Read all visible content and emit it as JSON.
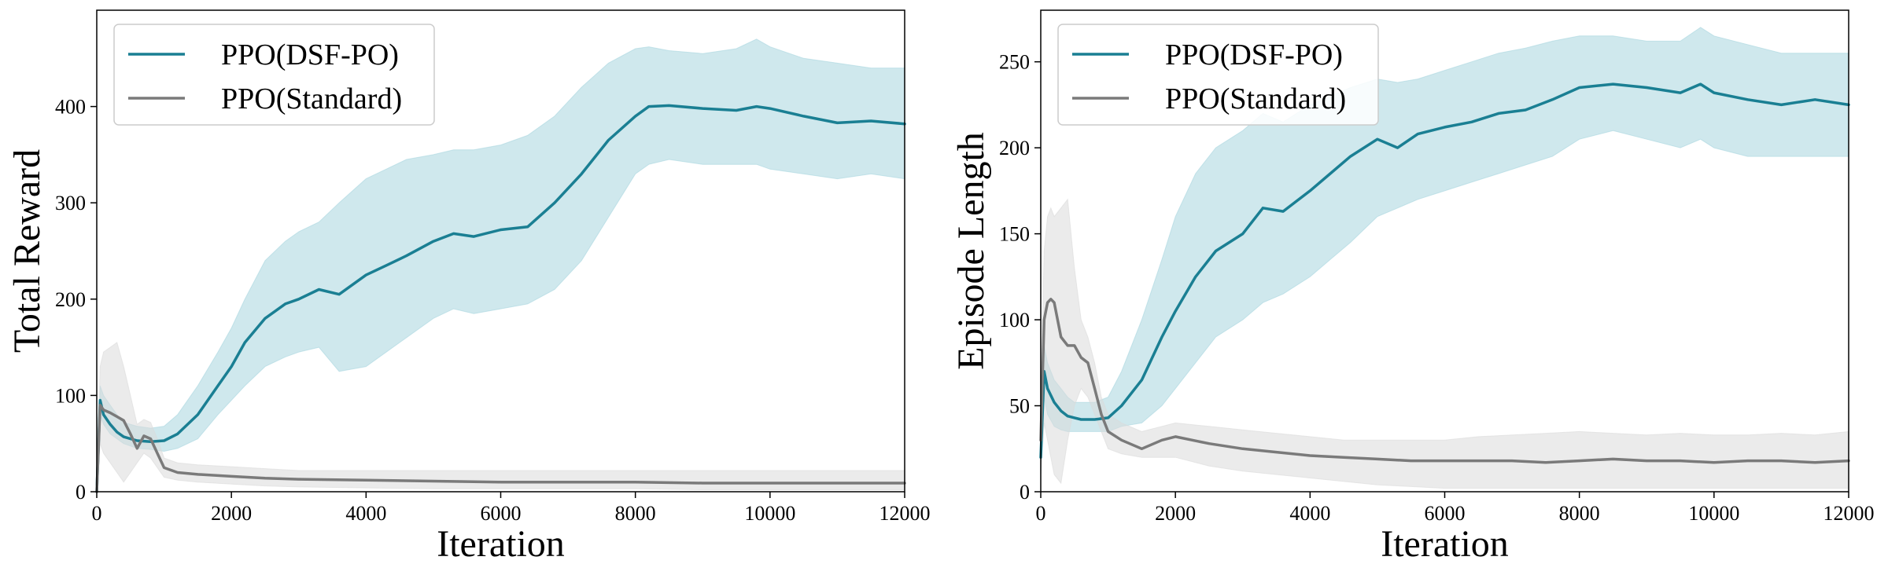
{
  "chart_data": [
    {
      "type": "line",
      "xlabel": "Iteration",
      "ylabel": "Total Reward",
      "xlim": [
        0,
        12000
      ],
      "ylim": [
        0,
        500
      ],
      "xticks": [
        0,
        2000,
        4000,
        6000,
        8000,
        10000,
        12000
      ],
      "yticks": [
        0,
        100,
        200,
        300,
        400
      ],
      "grid": false,
      "legend": "top-left",
      "series": [
        {
          "name": "PPO(DSF-PO)",
          "color": "#1a7f93",
          "band_color": "#a8d5df",
          "x": [
            0,
            50,
            100,
            200,
            300,
            400,
            600,
            800,
            1000,
            1200,
            1500,
            1800,
            2000,
            2200,
            2500,
            2800,
            3000,
            3300,
            3600,
            4000,
            4300,
            4600,
            5000,
            5300,
            5600,
            6000,
            6400,
            6800,
            7200,
            7600,
            8000,
            8200,
            8500,
            9000,
            9500,
            9800,
            10000,
            10500,
            11000,
            11500,
            12000
          ],
          "y": [
            0,
            95,
            80,
            70,
            62,
            57,
            53,
            52,
            53,
            60,
            80,
            110,
            130,
            155,
            180,
            195,
            200,
            210,
            205,
            225,
            235,
            245,
            260,
            268,
            265,
            272,
            275,
            300,
            330,
            365,
            390,
            400,
            401,
            398,
            396,
            400,
            398,
            390,
            383,
            385,
            382
          ],
          "y_low": [
            0,
            80,
            70,
            60,
            55,
            50,
            45,
            44,
            42,
            45,
            55,
            80,
            95,
            110,
            130,
            140,
            145,
            150,
            125,
            130,
            145,
            160,
            180,
            190,
            185,
            190,
            195,
            210,
            240,
            285,
            330,
            340,
            345,
            340,
            340,
            340,
            335,
            330,
            325,
            330,
            325
          ],
          "y_high": [
            0,
            110,
            100,
            90,
            80,
            72,
            68,
            66,
            68,
            80,
            110,
            145,
            170,
            200,
            240,
            260,
            270,
            280,
            300,
            325,
            335,
            345,
            350,
            355,
            355,
            360,
            370,
            390,
            420,
            445,
            460,
            462,
            458,
            455,
            460,
            470,
            462,
            450,
            445,
            440,
            440
          ]
        },
        {
          "name": "PPO(Standard)",
          "color": "#7a7a7a",
          "band_color": "#dadada",
          "x": [
            0,
            50,
            100,
            200,
            300,
            400,
            500,
            600,
            700,
            800,
            900,
            1000,
            1200,
            1500,
            2000,
            2500,
            3000,
            4000,
            5000,
            6000,
            7000,
            8000,
            9000,
            10000,
            11000,
            12000
          ],
          "y": [
            0,
            90,
            85,
            82,
            78,
            74,
            60,
            45,
            58,
            55,
            40,
            25,
            20,
            18,
            16,
            14,
            13,
            12,
            11,
            10,
            10,
            10,
            9,
            9,
            9,
            9
          ],
          "y_low": [
            0,
            50,
            40,
            30,
            20,
            10,
            20,
            30,
            40,
            35,
            25,
            15,
            12,
            10,
            8,
            6,
            5,
            4,
            3,
            3,
            3,
            3,
            2,
            2,
            2,
            2
          ],
          "y_high": [
            0,
            130,
            145,
            150,
            155,
            130,
            100,
            70,
            75,
            72,
            55,
            35,
            30,
            28,
            26,
            24,
            22,
            22,
            22,
            22,
            22,
            22,
            22,
            22,
            22,
            22
          ]
        }
      ]
    },
    {
      "type": "line",
      "xlabel": "Iteration",
      "ylabel": "Episode Length",
      "xlim": [
        0,
        12000
      ],
      "ylim": [
        0,
        280
      ],
      "xticks": [
        0,
        2000,
        4000,
        6000,
        8000,
        10000,
        12000
      ],
      "yticks": [
        0,
        50,
        100,
        150,
        200,
        250
      ],
      "grid": false,
      "legend": "top-left",
      "series": [
        {
          "name": "PPO(DSF-PO)",
          "color": "#1a7f93",
          "band_color": "#a8d5df",
          "x": [
            0,
            50,
            100,
            200,
            300,
            400,
            500,
            600,
            800,
            1000,
            1200,
            1500,
            1800,
            2000,
            2300,
            2600,
            3000,
            3300,
            3600,
            4000,
            4300,
            4600,
            5000,
            5300,
            5600,
            6000,
            6400,
            6800,
            7200,
            7600,
            8000,
            8500,
            9000,
            9500,
            9800,
            10000,
            10500,
            11000,
            11500,
            12000
          ],
          "y": [
            20,
            70,
            60,
            52,
            47,
            44,
            43,
            42,
            42,
            43,
            50,
            65,
            90,
            105,
            125,
            140,
            150,
            165,
            163,
            175,
            185,
            195,
            205,
            200,
            208,
            212,
            215,
            220,
            222,
            228,
            235,
            237,
            235,
            232,
            237,
            232,
            228,
            225,
            228,
            225
          ],
          "y_low": [
            10,
            55,
            45,
            38,
            36,
            35,
            35,
            35,
            35,
            35,
            38,
            40,
            50,
            60,
            75,
            90,
            100,
            110,
            115,
            125,
            135,
            145,
            160,
            165,
            170,
            175,
            180,
            185,
            190,
            195,
            205,
            210,
            205,
            200,
            205,
            200,
            195,
            195,
            195,
            195
          ],
          "y_high": [
            30,
            85,
            75,
            65,
            60,
            55,
            52,
            52,
            52,
            55,
            70,
            100,
            135,
            160,
            185,
            200,
            210,
            220,
            215,
            225,
            230,
            235,
            240,
            238,
            240,
            245,
            250,
            255,
            258,
            262,
            265,
            265,
            262,
            262,
            270,
            265,
            260,
            255,
            255,
            255
          ]
        },
        {
          "name": "PPO(Standard)",
          "color": "#7a7a7a",
          "band_color": "#dadada",
          "x": [
            0,
            50,
            100,
            150,
            200,
            300,
            400,
            500,
            600,
            700,
            800,
            900,
            1000,
            1200,
            1500,
            1800,
            2000,
            2500,
            3000,
            3500,
            4000,
            4500,
            5000,
            5500,
            6000,
            6500,
            7000,
            7500,
            8000,
            8500,
            9000,
            9500,
            10000,
            10500,
            11000,
            11500,
            12000
          ],
          "y": [
            30,
            100,
            110,
            112,
            110,
            90,
            85,
            85,
            78,
            75,
            60,
            45,
            35,
            30,
            25,
            30,
            32,
            28,
            25,
            23,
            21,
            20,
            19,
            18,
            18,
            18,
            18,
            17,
            18,
            19,
            18,
            18,
            17,
            18,
            18,
            17,
            18
          ],
          "y_low": [
            10,
            40,
            30,
            20,
            10,
            5,
            30,
            50,
            60,
            55,
            45,
            35,
            25,
            22,
            20,
            20,
            20,
            15,
            12,
            10,
            8,
            6,
            4,
            3,
            2,
            2,
            2,
            2,
            2,
            2,
            2,
            2,
            2,
            2,
            2,
            2,
            2
          ],
          "y_high": [
            50,
            140,
            160,
            165,
            160,
            165,
            170,
            130,
            100,
            90,
            75,
            55,
            45,
            40,
            35,
            38,
            40,
            38,
            36,
            34,
            32,
            30,
            30,
            30,
            30,
            32,
            33,
            34,
            35,
            34,
            33,
            34,
            33,
            33,
            34,
            33,
            35
          ]
        }
      ]
    }
  ]
}
